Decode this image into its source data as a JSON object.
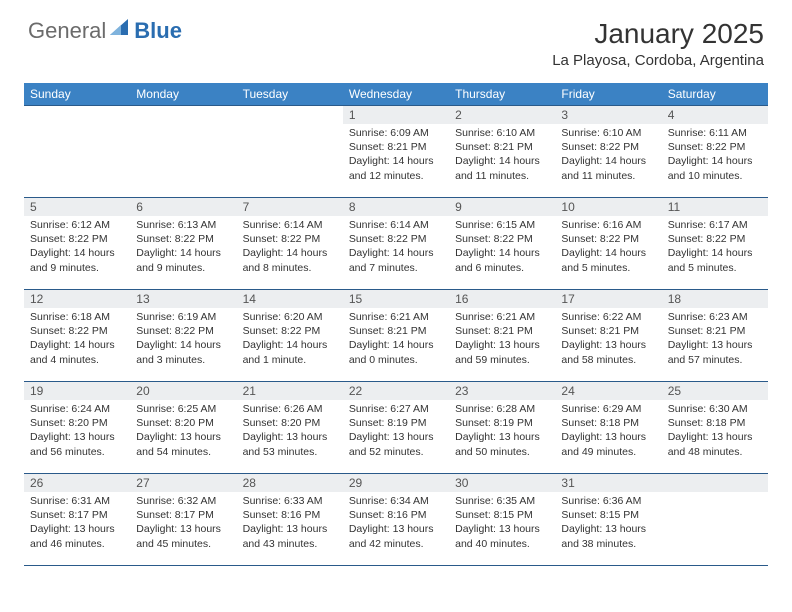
{
  "logo": {
    "general": "General",
    "blue": "Blue"
  },
  "title": "January 2025",
  "location": "La Playosa, Cordoba, Argentina",
  "colors": {
    "header_bg": "#3b82c4",
    "header_text": "#ffffff",
    "daynum_bg": "#eceef0",
    "border": "#2a5a8a",
    "logo_gray": "#6b6b6b",
    "logo_blue": "#2a6db0"
  },
  "weekdays": [
    "Sunday",
    "Monday",
    "Tuesday",
    "Wednesday",
    "Thursday",
    "Friday",
    "Saturday"
  ],
  "layout": {
    "first_weekday_index": 3,
    "days_in_month": 31
  },
  "days": {
    "1": {
      "sunrise": "6:09 AM",
      "sunset": "8:21 PM",
      "daylight": "14 hours and 12 minutes."
    },
    "2": {
      "sunrise": "6:10 AM",
      "sunset": "8:21 PM",
      "daylight": "14 hours and 11 minutes."
    },
    "3": {
      "sunrise": "6:10 AM",
      "sunset": "8:22 PM",
      "daylight": "14 hours and 11 minutes."
    },
    "4": {
      "sunrise": "6:11 AM",
      "sunset": "8:22 PM",
      "daylight": "14 hours and 10 minutes."
    },
    "5": {
      "sunrise": "6:12 AM",
      "sunset": "8:22 PM",
      "daylight": "14 hours and 9 minutes."
    },
    "6": {
      "sunrise": "6:13 AM",
      "sunset": "8:22 PM",
      "daylight": "14 hours and 9 minutes."
    },
    "7": {
      "sunrise": "6:14 AM",
      "sunset": "8:22 PM",
      "daylight": "14 hours and 8 minutes."
    },
    "8": {
      "sunrise": "6:14 AM",
      "sunset": "8:22 PM",
      "daylight": "14 hours and 7 minutes."
    },
    "9": {
      "sunrise": "6:15 AM",
      "sunset": "8:22 PM",
      "daylight": "14 hours and 6 minutes."
    },
    "10": {
      "sunrise": "6:16 AM",
      "sunset": "8:22 PM",
      "daylight": "14 hours and 5 minutes."
    },
    "11": {
      "sunrise": "6:17 AM",
      "sunset": "8:22 PM",
      "daylight": "14 hours and 5 minutes."
    },
    "12": {
      "sunrise": "6:18 AM",
      "sunset": "8:22 PM",
      "daylight": "14 hours and 4 minutes."
    },
    "13": {
      "sunrise": "6:19 AM",
      "sunset": "8:22 PM",
      "daylight": "14 hours and 3 minutes."
    },
    "14": {
      "sunrise": "6:20 AM",
      "sunset": "8:22 PM",
      "daylight": "14 hours and 1 minute."
    },
    "15": {
      "sunrise": "6:21 AM",
      "sunset": "8:21 PM",
      "daylight": "14 hours and 0 minutes."
    },
    "16": {
      "sunrise": "6:21 AM",
      "sunset": "8:21 PM",
      "daylight": "13 hours and 59 minutes."
    },
    "17": {
      "sunrise": "6:22 AM",
      "sunset": "8:21 PM",
      "daylight": "13 hours and 58 minutes."
    },
    "18": {
      "sunrise": "6:23 AM",
      "sunset": "8:21 PM",
      "daylight": "13 hours and 57 minutes."
    },
    "19": {
      "sunrise": "6:24 AM",
      "sunset": "8:20 PM",
      "daylight": "13 hours and 56 minutes."
    },
    "20": {
      "sunrise": "6:25 AM",
      "sunset": "8:20 PM",
      "daylight": "13 hours and 54 minutes."
    },
    "21": {
      "sunrise": "6:26 AM",
      "sunset": "8:20 PM",
      "daylight": "13 hours and 53 minutes."
    },
    "22": {
      "sunrise": "6:27 AM",
      "sunset": "8:19 PM",
      "daylight": "13 hours and 52 minutes."
    },
    "23": {
      "sunrise": "6:28 AM",
      "sunset": "8:19 PM",
      "daylight": "13 hours and 50 minutes."
    },
    "24": {
      "sunrise": "6:29 AM",
      "sunset": "8:18 PM",
      "daylight": "13 hours and 49 minutes."
    },
    "25": {
      "sunrise": "6:30 AM",
      "sunset": "8:18 PM",
      "daylight": "13 hours and 48 minutes."
    },
    "26": {
      "sunrise": "6:31 AM",
      "sunset": "8:17 PM",
      "daylight": "13 hours and 46 minutes."
    },
    "27": {
      "sunrise": "6:32 AM",
      "sunset": "8:17 PM",
      "daylight": "13 hours and 45 minutes."
    },
    "28": {
      "sunrise": "6:33 AM",
      "sunset": "8:16 PM",
      "daylight": "13 hours and 43 minutes."
    },
    "29": {
      "sunrise": "6:34 AM",
      "sunset": "8:16 PM",
      "daylight": "13 hours and 42 minutes."
    },
    "30": {
      "sunrise": "6:35 AM",
      "sunset": "8:15 PM",
      "daylight": "13 hours and 40 minutes."
    },
    "31": {
      "sunrise": "6:36 AM",
      "sunset": "8:15 PM",
      "daylight": "13 hours and 38 minutes."
    }
  },
  "labels": {
    "sunrise": "Sunrise:",
    "sunset": "Sunset:",
    "daylight": "Daylight:"
  }
}
